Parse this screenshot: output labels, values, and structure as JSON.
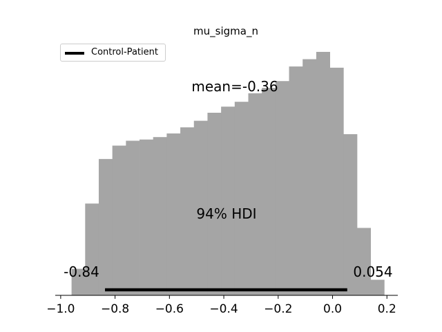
{
  "chart_data": {
    "type": "bar",
    "title": "mu_sigma_n",
    "xlabel": "",
    "ylabel": "",
    "xlim": [
      -1.02,
      0.24
    ],
    "ylim": [
      0,
      1.0
    ],
    "xticks": [
      -1.0,
      -0.8,
      -0.6,
      -0.4,
      -0.2,
      0.0,
      0.2
    ],
    "xtick_labels": [
      "−1.0",
      "−0.8",
      "−0.6",
      "−0.4",
      "−0.2",
      "0.0",
      "0.2"
    ],
    "bin_edges": [
      -0.96,
      -0.91,
      -0.86,
      -0.81,
      -0.76,
      -0.71,
      -0.66,
      -0.61,
      -0.56,
      -0.51,
      -0.46,
      -0.41,
      -0.36,
      -0.31,
      -0.26,
      -0.21,
      -0.16,
      -0.11,
      -0.06,
      -0.01,
      0.04,
      0.09,
      0.14,
      0.19
    ],
    "series": [
      {
        "values": [
          0.109,
          0.377,
          0.56,
          0.615,
          0.635,
          0.64,
          0.65,
          0.665,
          0.69,
          0.717,
          0.75,
          0.775,
          0.795,
          0.83,
          0.852,
          0.88,
          0.94,
          0.97,
          1.0,
          0.935,
          0.662,
          0.277,
          0.064,
          0.01
        ],
        "color": "#a5a5a5"
      }
    ],
    "legend": {
      "entries": [
        "Control-Patient"
      ],
      "placement": "top-left",
      "color": "#000000"
    },
    "annotations": {
      "mean_text": "mean=-0.36",
      "hdi_text": "94% HDI",
      "hdi_low_text": "-0.84",
      "hdi_high_text": "0.054"
    },
    "hdi": {
      "low": -0.837,
      "high": 0.054,
      "color": "#000000"
    },
    "grid": false
  }
}
